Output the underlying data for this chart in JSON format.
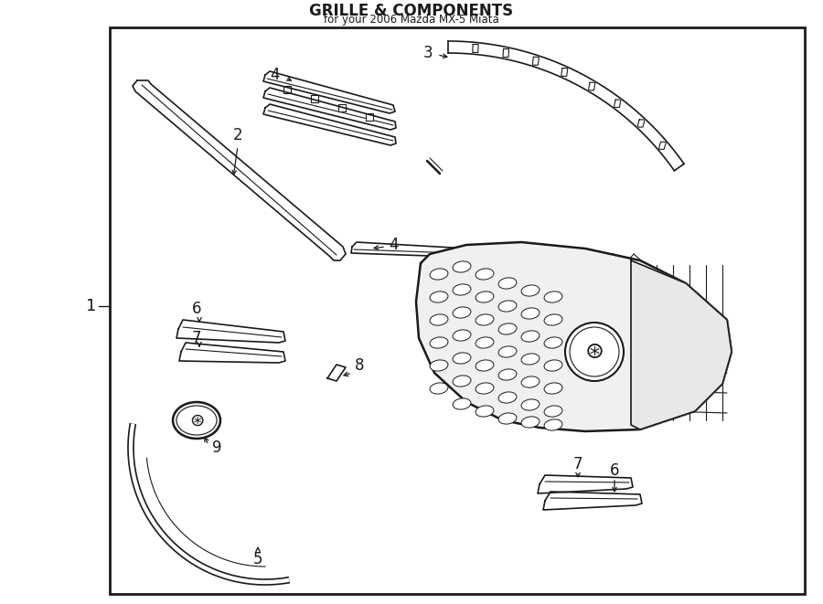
{
  "bg_color": "#ffffff",
  "border_color": "#1a1a1a",
  "line_color": "#1a1a1a",
  "title": "GRILLE & COMPONENTS",
  "subtitle": "for your 2006 Mazda MX-5 Miata",
  "fig_width": 9.0,
  "fig_height": 6.61,
  "dpi": 100
}
